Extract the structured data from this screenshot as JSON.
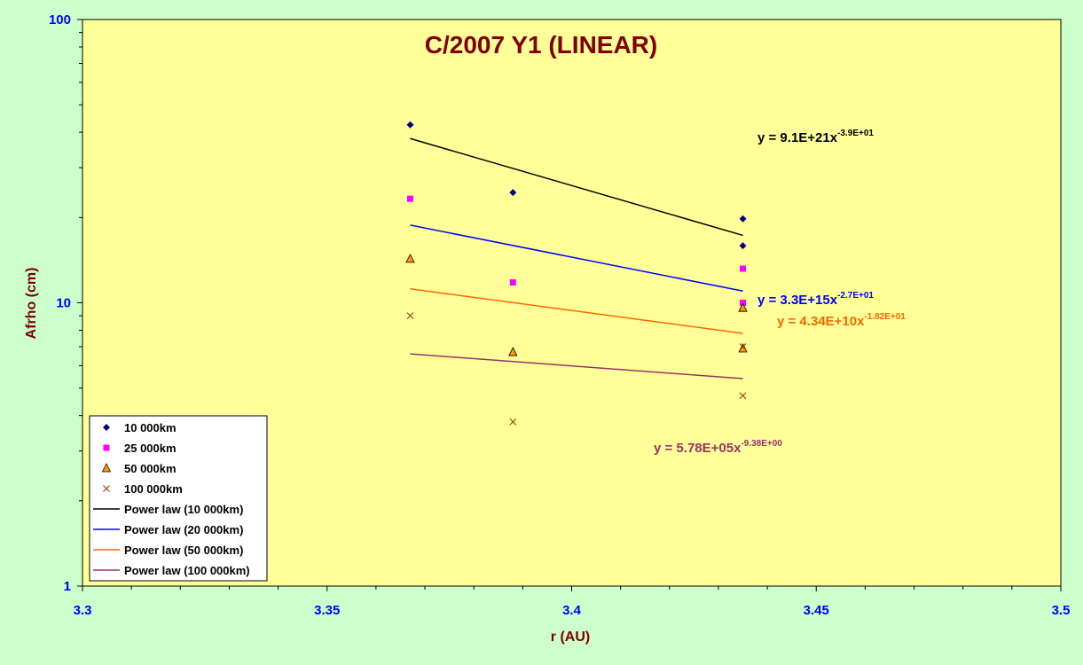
{
  "chart_data": {
    "type": "scatter",
    "title": "C/2007 Y1 (LINEAR)",
    "xlabel": "r (AU)",
    "ylabel": "Afrho (cm)",
    "xlim": [
      3.3,
      3.5
    ],
    "ylim": [
      1,
      100
    ],
    "yscale": "log",
    "grid": false,
    "legend_position": "bottom-left",
    "x_ticks": [
      3.3,
      3.35,
      3.4,
      3.45,
      3.5
    ],
    "x_tick_labels": [
      "3.3",
      "3.35",
      "3.4",
      "3.45",
      "3.5"
    ],
    "y_ticks": [
      1,
      10,
      100
    ],
    "y_tick_labels": [
      "1",
      "10",
      "100"
    ],
    "series": [
      {
        "name": "10 000km",
        "marker": "diamond",
        "color": "#000080",
        "x": [
          3.367,
          3.388,
          3.435,
          3.435
        ],
        "y": [
          42.5,
          24.5,
          19.8,
          15.9
        ]
      },
      {
        "name": "25 000km",
        "marker": "square",
        "color": "#ff00ff",
        "x": [
          3.367,
          3.388,
          3.435,
          3.435
        ],
        "y": [
          23.3,
          11.8,
          13.2,
          10.0
        ]
      },
      {
        "name": "50 000km",
        "marker": "triangle",
        "color": "#ff9900",
        "x": [
          3.367,
          3.388,
          3.435,
          3.435
        ],
        "y": [
          14.3,
          6.7,
          9.6,
          6.9
        ]
      },
      {
        "name": "100 000km",
        "marker": "x",
        "color": "#993300",
        "x": [
          3.367,
          3.388,
          3.435,
          3.435
        ],
        "y": [
          9.0,
          3.8,
          7.0,
          4.7
        ]
      }
    ],
    "trendlines": [
      {
        "name": "Power law (10 000km)",
        "color": "#000000",
        "x": [
          3.367,
          3.435
        ],
        "y": [
          38.0,
          17.3
        ],
        "equation_base": "y = 9.1E+21x",
        "equation_exp": "-3.9E+01",
        "equation_color": "#000000"
      },
      {
        "name": "Power law (20 000km)",
        "color": "#0000ff",
        "x": [
          3.367,
          3.435
        ],
        "y": [
          18.8,
          11.0
        ],
        "equation_base": "y = 3.3E+15x",
        "equation_exp": "-2.7E+01",
        "equation_color": "#0000ff"
      },
      {
        "name": "Power law (50 000km)",
        "color": "#ff6600",
        "x": [
          3.367,
          3.435
        ],
        "y": [
          11.2,
          7.8
        ],
        "equation_base": "y = 4.34E+10x",
        "equation_exp": "-1.82E+01",
        "equation_color": "#ff6600"
      },
      {
        "name": "Power law (100 000km)",
        "color": "#993366",
        "x": [
          3.367,
          3.435
        ],
        "y": [
          6.6,
          5.4
        ],
        "equation_base": "y = 5.78E+05x",
        "equation_exp": "-9.38E+00",
        "equation_color": "#993366"
      }
    ],
    "colors": {
      "background": "#ccffcc",
      "plot_area": "#ffff99",
      "title": "#800000",
      "tick_labels": "#0000ff"
    }
  }
}
